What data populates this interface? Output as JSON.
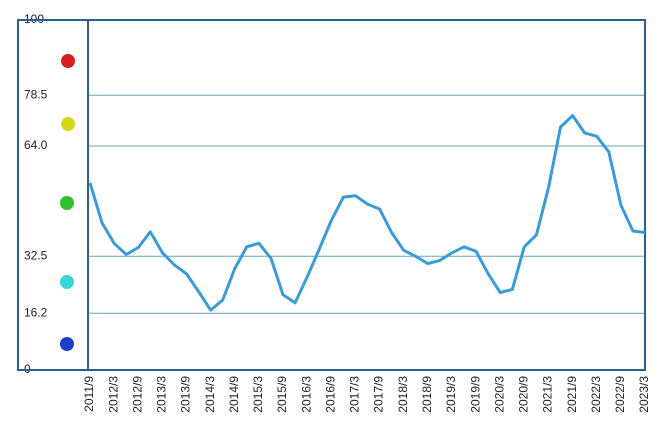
{
  "chart_data": {
    "type": "line",
    "categories": [
      "2011/9",
      null,
      "2012/3",
      null,
      "2012/9",
      null,
      "2013/3",
      null,
      "2013/9",
      null,
      "2014/3",
      null,
      "2014/9",
      null,
      "2015/3",
      null,
      "2015/9",
      null,
      "2016/3",
      null,
      "2016/9",
      null,
      "2017/3",
      null,
      "2017/9",
      null,
      "2018/3",
      null,
      "2018/9",
      null,
      "2019/3",
      null,
      "2019/9",
      null,
      "2020/3",
      null,
      "2020/9",
      null,
      "2021/3",
      null,
      "2021/9",
      null,
      "2022/3",
      null,
      "2022/9",
      null,
      "2023/3"
    ],
    "values": [
      53.5,
      42,
      36.2,
      33,
      35,
      39.5,
      33.5,
      30,
      27.5,
      22.4,
      17.1,
      20,
      29,
      35.2,
      36.2,
      31.9,
      21.5,
      19.2,
      26.6,
      34.5,
      42.7,
      49.4,
      49.8,
      47.4,
      46,
      39.3,
      34.2,
      32.5,
      30.4,
      31.3,
      33.5,
      35.2,
      33.9,
      27.5,
      22.1,
      23,
      35.2,
      38.6,
      52.1,
      69.4,
      72.7,
      67.7,
      66.8,
      62.3,
      47.1,
      39.7,
      39.3
    ],
    "color": "#3b9bd8",
    "ylim": [
      0,
      100
    ],
    "yticks": [
      0,
      16.2,
      32.5,
      {
        "value": 64,
        "label": "64.0"
      },
      78.5,
      100
    ],
    "grid": true
  }
}
